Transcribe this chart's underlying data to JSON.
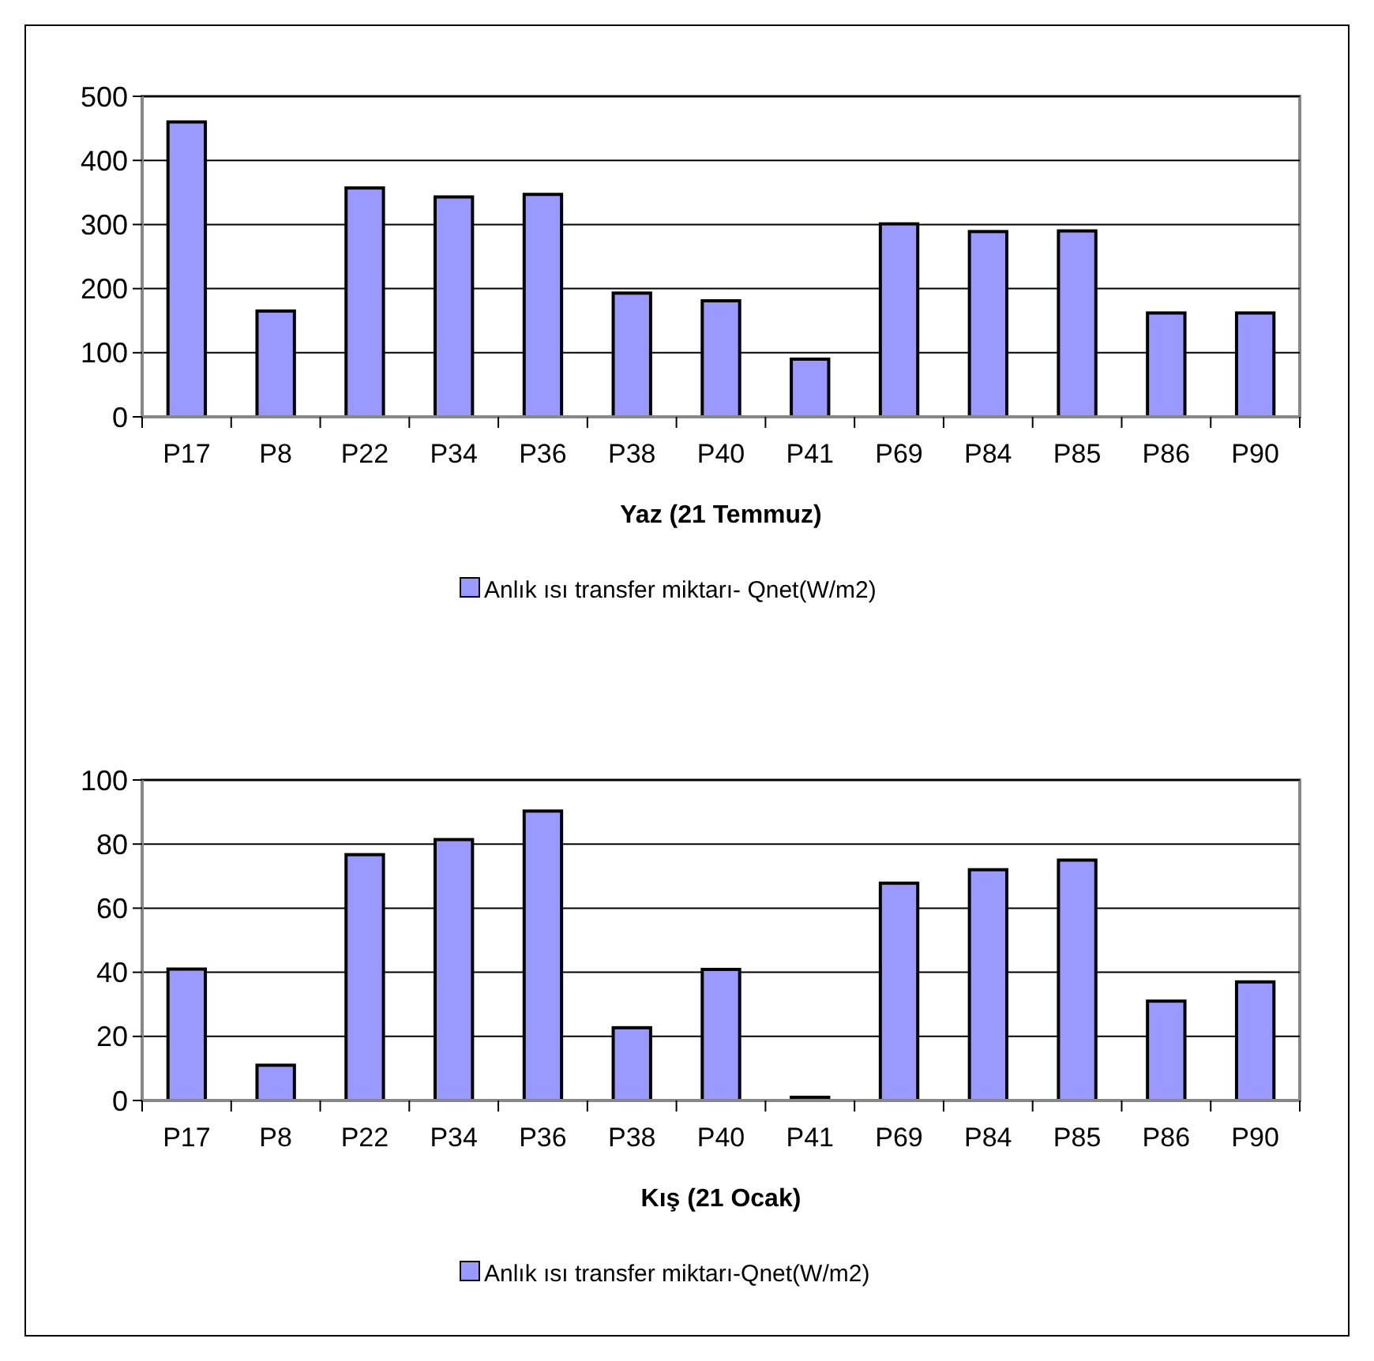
{
  "chart_data": [
    {
      "type": "bar",
      "xlabel": "Yaz (21 Temmuz)",
      "categories": [
        "P17",
        "P8",
        "P22",
        "P34",
        "P36",
        "P38",
        "P40",
        "P41",
        "P69",
        "P84",
        "P85",
        "P86",
        "P90"
      ],
      "series": [
        {
          "name": "Anlık ısı transfer miktarı- Qnet(W/m2)",
          "color": "#9999ff",
          "values": [
            460,
            165,
            357,
            343,
            347,
            193,
            181,
            90,
            301,
            289,
            290,
            162,
            162
          ]
        }
      ],
      "ylim": [
        0,
        500
      ],
      "yticks": [
        0,
        100,
        200,
        300,
        400,
        500
      ],
      "grid": "y",
      "legend": "bottom"
    },
    {
      "type": "bar",
      "xlabel": "Kış (21 Ocak)",
      "categories": [
        "P17",
        "P8",
        "P22",
        "P34",
        "P36",
        "P38",
        "P40",
        "P41",
        "P69",
        "P84",
        "P85",
        "P86",
        "P90"
      ],
      "series": [
        {
          "name": "Anlık ısı transfer miktarı-Qnet(W/m2)",
          "color": "#9999ff",
          "values": [
            41,
            11,
            76.7,
            81.4,
            90.3,
            22.7,
            40.9,
            1,
            67.8,
            72,
            75,
            31,
            37
          ]
        }
      ],
      "ylim": [
        0,
        100
      ],
      "yticks": [
        0,
        20,
        40,
        60,
        80,
        100
      ],
      "grid": "y",
      "legend": "bottom"
    }
  ]
}
